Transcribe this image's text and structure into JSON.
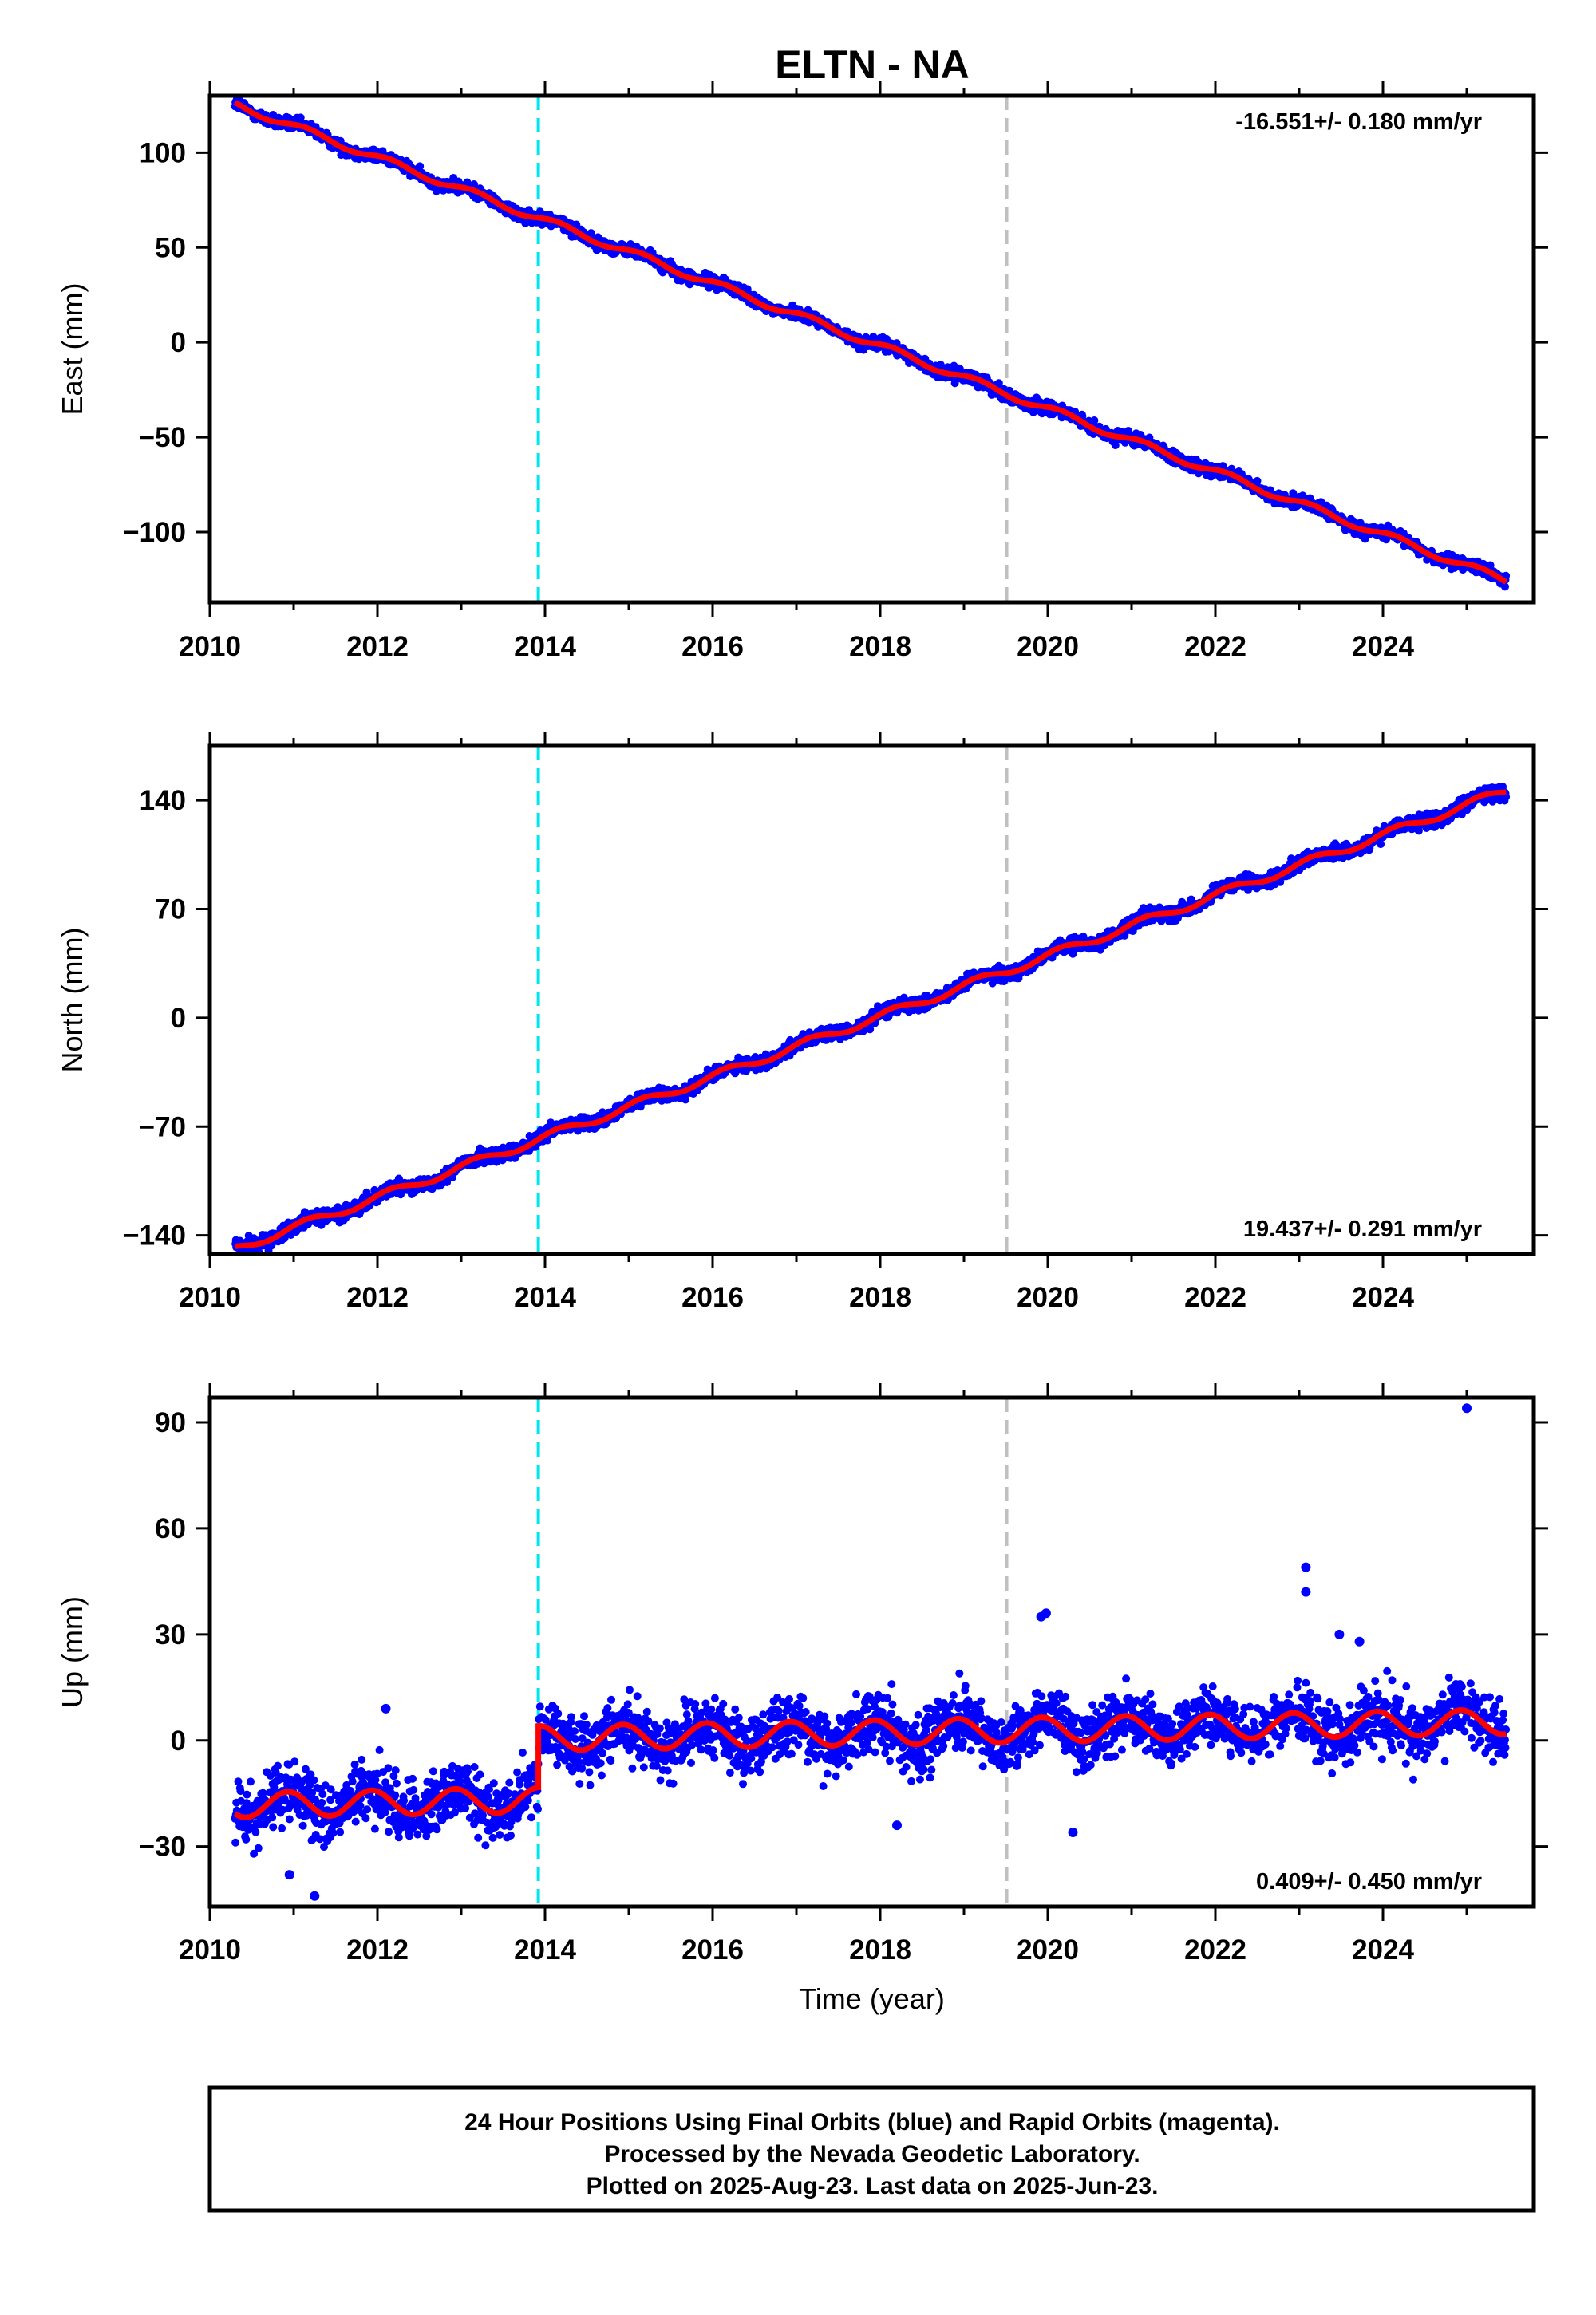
{
  "title": "ELTN - NA",
  "footer": {
    "line1": "24 Hour Positions Using Final Orbits (blue) and Rapid Orbits (magenta).",
    "line2": "Processed by the Nevada Geodetic Laboratory.",
    "line3": "Plotted on 2025-Aug-23. Last data on 2025-Jun-23."
  },
  "colors": {
    "data": "#0000ff",
    "fit": "#ff0000",
    "antenna_change": "#00e5ee",
    "equipment_change": "#c0c0c0"
  },
  "chart_data": [
    {
      "type": "scatter",
      "panel": "east",
      "ylabel": "East (mm)",
      "xlabel": "",
      "xlim": [
        2010,
        2025.8
      ],
      "ylim": [
        -137,
        130
      ],
      "xticks": [
        2010,
        2012,
        2014,
        2016,
        2018,
        2020,
        2022,
        2024
      ],
      "yticks": [
        100,
        50,
        0,
        -50,
        -100
      ],
      "ytick_labels": [
        "100",
        "50",
        "0",
        "−50",
        "−100"
      ],
      "rate_label": "-16.551+/- 0.180 mm/yr",
      "rate_position": "top-right",
      "vlines": [
        {
          "x": 2013.92,
          "color": "cyan"
        },
        {
          "x": 2019.51,
          "color": "gray"
        }
      ],
      "data_start": 2010.3,
      "data_end": 2025.47,
      "trend": {
        "t0": 2017.88,
        "intercept": 0,
        "rate": -16.551
      },
      "seasonal": {
        "amp_sin": 1.5,
        "amp_cos": 1.0
      },
      "scatter_sd": 1.6,
      "series": [
        {
          "name": "Final Orbits",
          "x": [
            2010.3,
            2011.0,
            2012.0,
            2013.0,
            2014.0,
            2015.0,
            2016.0,
            2017.0,
            2018.0,
            2019.0,
            2020.0,
            2021.0,
            2022.0,
            2023.0,
            2024.0,
            2025.0,
            2025.47
          ],
          "values": [
            118,
            114,
            99,
            82,
            63,
            48,
            33,
            16,
            0,
            -16,
            -35,
            -52,
            -68,
            -84,
            -100,
            -117,
            -129
          ]
        }
      ]
    },
    {
      "type": "scatter",
      "panel": "north",
      "ylabel": "North (mm)",
      "xlabel": "",
      "xlim": [
        2010,
        2025.8
      ],
      "ylim": [
        -152,
        175
      ],
      "xticks": [
        2010,
        2012,
        2014,
        2016,
        2018,
        2020,
        2022,
        2024
      ],
      "yticks": [
        140,
        70,
        0,
        -70,
        -140
      ],
      "ytick_labels": [
        "140",
        "70",
        "0",
        "−70",
        "−140"
      ],
      "rate_label": "19.437+/- 0.291 mm/yr",
      "rate_position": "bottom-right",
      "vlines": [
        {
          "x": 2013.92,
          "color": "cyan"
        },
        {
          "x": 2019.51,
          "color": "gray"
        }
      ],
      "data_start": 2010.3,
      "data_end": 2025.47,
      "trend": {
        "t0": 2017.95,
        "intercept": 0,
        "rate": 19.437
      },
      "seasonal": {
        "amp_sin": 2.2,
        "amp_cos": 1.4
      },
      "scatter_sd": 2.2,
      "series": [
        {
          "name": "Final Orbits",
          "x": [
            2010.3,
            2011.0,
            2012.0,
            2013.0,
            2014.0,
            2015.0,
            2016.0,
            2017.0,
            2018.0,
            2019.0,
            2020.0,
            2021.0,
            2022.0,
            2023.0,
            2024.0,
            2025.0,
            2025.47
          ],
          "values": [
            -140,
            -130,
            -112,
            -90,
            -73,
            -55,
            -35,
            -17,
            0,
            22,
            41,
            60,
            80,
            100,
            120,
            145,
            171
          ]
        }
      ]
    },
    {
      "type": "scatter",
      "panel": "up",
      "ylabel": "Up (mm)",
      "xlabel": "Time (year)",
      "xlim": [
        2010,
        2025.8
      ],
      "ylim": [
        -47,
        97
      ],
      "xticks": [
        2010,
        2012,
        2014,
        2016,
        2018,
        2020,
        2022,
        2024
      ],
      "yticks": [
        90,
        60,
        30,
        0,
        -30
      ],
      "ytick_labels": [
        "90",
        "60",
        "30",
        "0",
        "−30"
      ],
      "rate_label": "0.409+/- 0.450 mm/yr",
      "rate_position": "bottom-right",
      "vlines": [
        {
          "x": 2013.92,
          "color": "cyan"
        },
        {
          "x": 2019.51,
          "color": "gray"
        }
      ],
      "data_start": 2010.3,
      "data_end": 2025.47,
      "trend": {
        "t0": 2017.88,
        "intercept": 2.2,
        "rate": 0.409
      },
      "offset": {
        "at": 2013.92,
        "before": -15.2
      },
      "seasonal": {
        "amp_sin": -1.5,
        "amp_cos": 3.2
      },
      "scatter_sd": 4.2,
      "series": [
        {
          "name": "Final Orbits",
          "x": [
            2010.3,
            2012.0,
            2013.9,
            2014.0,
            2016.0,
            2018.0,
            2020.0,
            2022.0,
            2024.0,
            2025.47
          ],
          "values": [
            -15,
            -13,
            -8,
            3,
            2,
            1,
            3,
            4,
            5,
            2
          ]
        }
      ],
      "outliers": [
        {
          "x": 2025.0,
          "y": 94
        },
        {
          "x": 2023.08,
          "y": 49
        },
        {
          "x": 2023.08,
          "y": 42
        },
        {
          "x": 2019.92,
          "y": 35
        },
        {
          "x": 2019.98,
          "y": 36
        },
        {
          "x": 2023.48,
          "y": 30
        },
        {
          "x": 2023.72,
          "y": 28
        },
        {
          "x": 2011.25,
          "y": -44
        },
        {
          "x": 2010.95,
          "y": -38
        },
        {
          "x": 2020.3,
          "y": -26
        },
        {
          "x": 2018.2,
          "y": -24
        },
        {
          "x": 2012.1,
          "y": 9
        }
      ]
    }
  ]
}
